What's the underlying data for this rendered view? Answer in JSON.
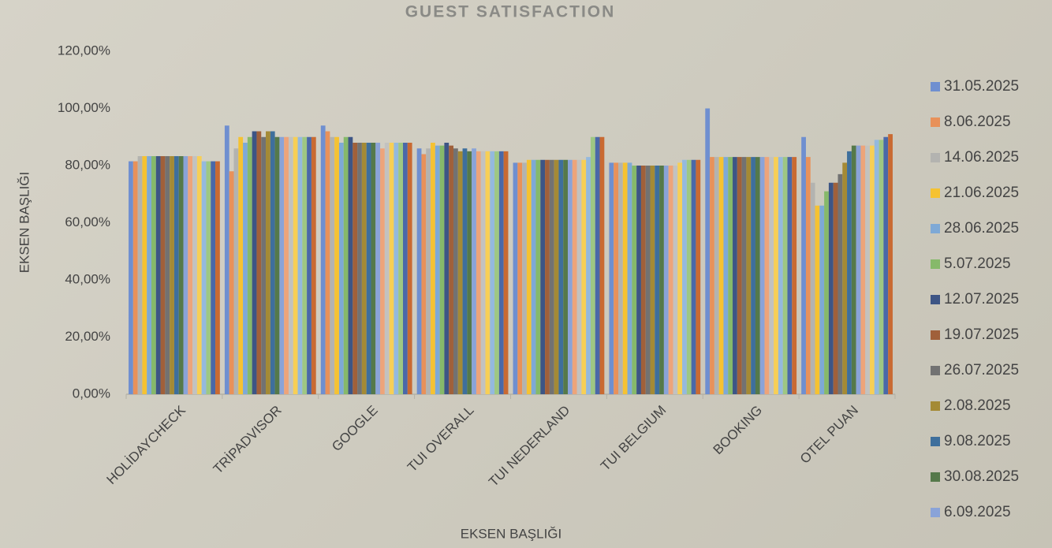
{
  "chart_data": {
    "type": "bar",
    "title": "GUEST SATISFACTION",
    "x_label": "EKSEN BAŞLIĞI",
    "y_label": "EKSEN BAŞLIĞI",
    "categories": [
      "HOLİDAYCHECK",
      "TRİPADVISOR",
      "GOOGLE",
      "TUI OVERALL",
      "TUI NEDERLAND",
      "TUI BELGIUM",
      "BOOKING",
      "OTEL PUAN"
    ],
    "ylim": [
      0,
      120
    ],
    "yticks": [
      {
        "value": 0,
        "label": "0,00%"
      },
      {
        "value": 20,
        "label": "20,00%"
      },
      {
        "value": 40,
        "label": "40,00%"
      },
      {
        "value": 60,
        "label": "60,00%"
      },
      {
        "value": 80,
        "label": "80,00%"
      },
      {
        "value": 100,
        "label": "100,00%"
      },
      {
        "value": 120,
        "label": "120,00%"
      }
    ],
    "grid": false,
    "legend": "right",
    "series": [
      {
        "name": "31.05.2025",
        "color": "#6f8fd0",
        "values": [
          81.5,
          94,
          94,
          86,
          81,
          81,
          100,
          90
        ]
      },
      {
        "name": "8.06.2025",
        "color": "#e8915a",
        "values": [
          81.5,
          78,
          92,
          84,
          81,
          81,
          83,
          83
        ]
      },
      {
        "name": "14.06.2025",
        "color": "#b3b3b0",
        "values": [
          83.3,
          86,
          90,
          86,
          81,
          81,
          83,
          74
        ]
      },
      {
        "name": "21.06.2025",
        "color": "#f5c232",
        "values": [
          83.3,
          90,
          90,
          88,
          82,
          81,
          83,
          66
        ]
      },
      {
        "name": "28.06.2025",
        "color": "#7ea9d6",
        "values": [
          83.3,
          88,
          88,
          87,
          82,
          81,
          83,
          66
        ]
      },
      {
        "name": "5.07.2025",
        "color": "#86b96a",
        "values": [
          83.3,
          90,
          90,
          87,
          82,
          80,
          83,
          71
        ]
      },
      {
        "name": "12.07.2025",
        "color": "#3d5585",
        "values": [
          83.3,
          92,
          90,
          88,
          82,
          80,
          83,
          74
        ]
      },
      {
        "name": "19.07.2025",
        "color": "#a0603a",
        "values": [
          83.3,
          92,
          88,
          87,
          82,
          80,
          83,
          74
        ]
      },
      {
        "name": "26.07.2025",
        "color": "#727272",
        "values": [
          83.3,
          90,
          88,
          86,
          82,
          80,
          83,
          77
        ]
      },
      {
        "name": "2.08.2025",
        "color": "#a48a35",
        "values": [
          83.3,
          92,
          88,
          85,
          82,
          80,
          83,
          81
        ]
      },
      {
        "name": "9.08.2025",
        "color": "#3e6f9c",
        "values": [
          83.3,
          92,
          88,
          86,
          82,
          80,
          83,
          85
        ]
      },
      {
        "name": "30.08.2025",
        "color": "#55794a",
        "values": [
          83.3,
          90,
          88,
          85,
          82,
          80,
          83,
          87
        ]
      },
      {
        "name": "6.09.2025",
        "color": "#8aa3d8",
        "values": [
          83.3,
          90,
          88,
          86,
          82,
          80,
          83,
          87
        ]
      },
      {
        "color": "#eda47a",
        "values": [
          83.3,
          90,
          86,
          85,
          82,
          80,
          83,
          87
        ]
      },
      {
        "color": "#c2c2c0",
        "values": [
          83.3,
          90,
          88,
          85,
          82,
          80,
          83,
          87
        ]
      },
      {
        "color": "#f7cf56",
        "values": [
          83.3,
          90,
          88,
          85,
          82,
          81,
          83,
          87
        ]
      },
      {
        "color": "#94b9de",
        "values": [
          81.5,
          90,
          88,
          85,
          83,
          82,
          83,
          89
        ]
      },
      {
        "color": "#9ec783",
        "values": [
          81.5,
          90,
          88,
          85,
          90,
          82,
          83,
          89
        ]
      },
      {
        "color": "#4a68a8",
        "values": [
          81.5,
          90,
          88,
          85,
          90,
          82,
          83,
          90
        ]
      },
      {
        "color": "#c96a32",
        "values": [
          81.5,
          90,
          88,
          85,
          90,
          82,
          83,
          91
        ]
      }
    ]
  }
}
